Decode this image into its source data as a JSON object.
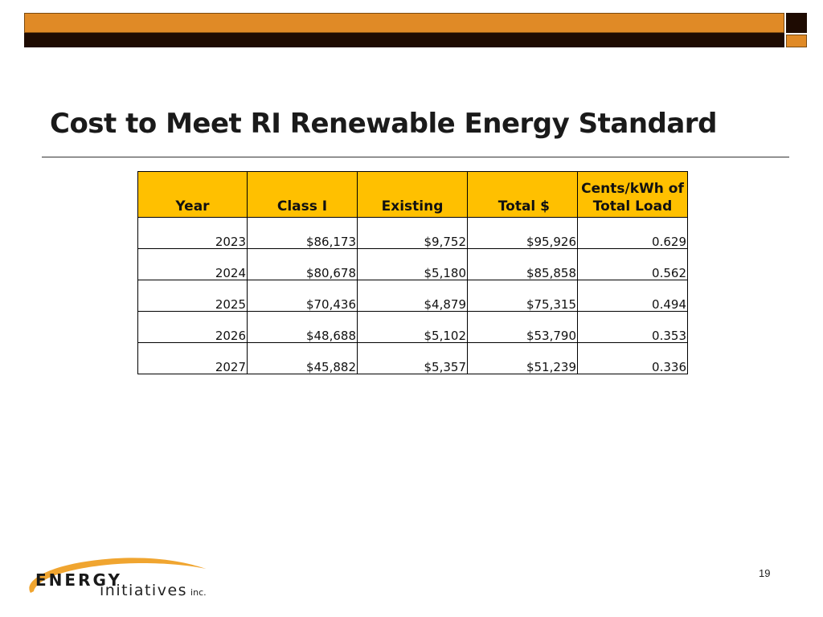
{
  "slide": {
    "title": "Cost to Meet RI Renewable Energy Standard",
    "page_number": "19"
  },
  "table": {
    "headers": {
      "year": "Year",
      "class1": "Class I",
      "existing": "Existing",
      "total": "Total $",
      "cents_line1": "Cents/kWh of",
      "cents_line2": "Total Load"
    },
    "rows": [
      {
        "year": "2023",
        "class1": "$86,173",
        "existing": "$9,752",
        "total": "$95,926",
        "cents": "0.629"
      },
      {
        "year": "2024",
        "class1": "$80,678",
        "existing": "$5,180",
        "total": "$85,858",
        "cents": "0.562"
      },
      {
        "year": "2025",
        "class1": "$70,436",
        "existing": "$4,879",
        "total": "$75,315",
        "cents": "0.494"
      },
      {
        "year": "2026",
        "class1": "$48,688",
        "existing": "$5,102",
        "total": "$53,790",
        "cents": "0.353"
      },
      {
        "year": "2027",
        "class1": "$45,882",
        "existing": "$5,357",
        "total": "$51,239",
        "cents": "0.336"
      }
    ]
  },
  "logo": {
    "word": "ENERGY",
    "sub": "initiatives",
    "suffix": "inc."
  },
  "colors": {
    "header_fill": "#ffc000",
    "banner_orange": "#e08a26",
    "banner_dark": "#1e0b02"
  }
}
